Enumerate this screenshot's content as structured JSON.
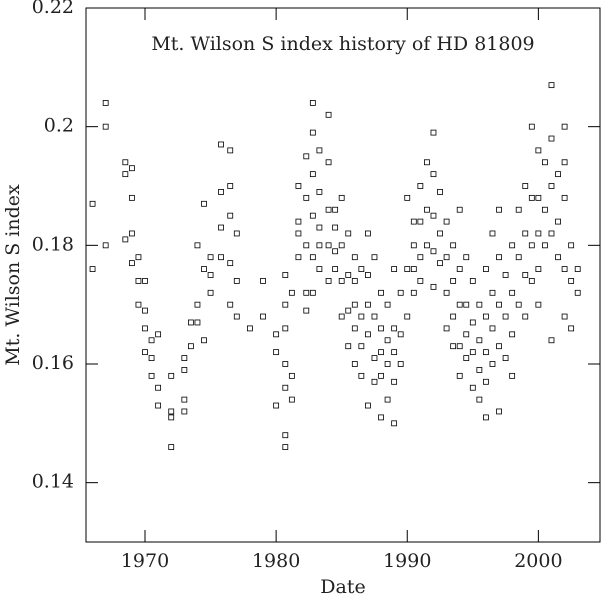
{
  "chart_data": {
    "type": "scatter",
    "title": "Mt. Wilson S index history of HD 81809",
    "x_label": "Date",
    "y_label": "Mt. Wilson S index",
    "color": "#000000",
    "xlim": [
      1965.5,
      2004.7
    ],
    "xticks": [
      1970,
      1980,
      1990,
      2000
    ],
    "ylim": [
      0.13,
      0.22
    ],
    "yticks": [
      0.14,
      0.16,
      0.18,
      0.2,
      0.22
    ],
    "x": [
      1966,
      1966,
      1967,
      1967,
      1967,
      1968.5,
      1968.5,
      1968.5,
      1969,
      1969,
      1969,
      1969,
      1969.5,
      1969.5,
      1969.5,
      1970,
      1970,
      1970,
      1970,
      1970.5,
      1970.5,
      1970.5,
      1971,
      1971,
      1971,
      1972,
      1972,
      1972,
      1972,
      1973,
      1973,
      1973,
      1973,
      1973.5,
      1973.5,
      1974,
      1974,
      1974,
      1974.5,
      1974.5,
      1974.5,
      1975,
      1975,
      1975,
      1975.8,
      1975.8,
      1975.8,
      1975.8,
      1976.5,
      1976.5,
      1976.5,
      1976.5,
      1976.5,
      1977,
      1977,
      1977,
      1978,
      1979,
      1979,
      1980,
      1980,
      1980,
      1980.7,
      1980.7,
      1980.7,
      1980.7,
      1980.7,
      1980.7,
      1980.7,
      1981.2,
      1981.2,
      1981.2,
      1981.7,
      1981.7,
      1981.7,
      1981.7,
      1982.3,
      1982.3,
      1982.3,
      1982.3,
      1982.3,
      1982.8,
      1982.8,
      1982.8,
      1982.8,
      1982.8,
      1982.8,
      1983.3,
      1983.3,
      1983.3,
      1983.3,
      1983.3,
      1984,
      1984,
      1984,
      1984,
      1984,
      1984.5,
      1984.5,
      1984.5,
      1984.5,
      1985,
      1985,
      1985,
      1985,
      1985.5,
      1985.5,
      1985.5,
      1985.5,
      1986,
      1986,
      1986,
      1986,
      1986,
      1986.5,
      1986.5,
      1986.5,
      1986.5,
      1987,
      1987,
      1987,
      1987,
      1987,
      1987.5,
      1987.5,
      1987.5,
      1987.5,
      1988,
      1988,
      1988,
      1988,
      1988,
      1988.5,
      1988.5,
      1988.5,
      1988.5,
      1989,
      1989,
      1989,
      1989,
      1989,
      1989.5,
      1989.5,
      1989.5,
      1990,
      1990,
      1990,
      1990.5,
      1990.5,
      1990.5,
      1990.5,
      1991,
      1991,
      1991,
      1991,
      1991.5,
      1991.5,
      1991.5,
      1992,
      1992,
      1992,
      1992,
      1992,
      1992.5,
      1992.5,
      1992.5,
      1993,
      1993,
      1993,
      1993,
      1993.5,
      1993.5,
      1993.5,
      1993.5,
      1994,
      1994,
      1994,
      1994,
      1994,
      1994.5,
      1994.5,
      1994.5,
      1994.5,
      1995,
      1995,
      1995,
      1995,
      1995.5,
      1995.5,
      1995.5,
      1995.5,
      1996,
      1996,
      1996,
      1996,
      1996,
      1996.5,
      1996.5,
      1996.5,
      1996.5,
      1997,
      1997,
      1997,
      1997,
      1997,
      1997.5,
      1997.5,
      1997.5,
      1998,
      1998,
      1998,
      1998,
      1998.5,
      1998.5,
      1998.5,
      1999,
      1999,
      1999,
      1999,
      1999.5,
      1999.5,
      1999.5,
      1999.5,
      2000,
      2000,
      2000,
      2000,
      2000,
      2000.5,
      2000.5,
      2000.5,
      2001,
      2001,
      2001,
      2001,
      2001,
      2001.5,
      2001.5,
      2001.5,
      2002,
      2002,
      2002,
      2002,
      2002,
      2002.5,
      2002.5,
      2002.5,
      2003,
      2003
    ],
    "values": [
      0.187,
      0.176,
      0.204,
      0.2,
      0.18,
      0.194,
      0.192,
      0.181,
      0.188,
      0.182,
      0.177,
      0.193,
      0.174,
      0.17,
      0.178,
      0.169,
      0.162,
      0.174,
      0.166,
      0.164,
      0.158,
      0.161,
      0.156,
      0.165,
      0.153,
      0.151,
      0.146,
      0.158,
      0.152,
      0.159,
      0.154,
      0.152,
      0.161,
      0.167,
      0.163,
      0.18,
      0.17,
      0.167,
      0.176,
      0.187,
      0.164,
      0.178,
      0.175,
      0.172,
      0.197,
      0.189,
      0.183,
      0.178,
      0.196,
      0.19,
      0.185,
      0.177,
      0.17,
      0.182,
      0.168,
      0.174,
      0.166,
      0.168,
      0.174,
      0.165,
      0.162,
      0.153,
      0.17,
      0.16,
      0.156,
      0.148,
      0.146,
      0.166,
      0.175,
      0.172,
      0.158,
      0.154,
      0.184,
      0.178,
      0.19,
      0.182,
      0.188,
      0.18,
      0.172,
      0.169,
      0.195,
      0.204,
      0.199,
      0.192,
      0.185,
      0.178,
      0.172,
      0.196,
      0.189,
      0.183,
      0.18,
      0.176,
      0.202,
      0.194,
      0.186,
      0.18,
      0.174,
      0.186,
      0.179,
      0.176,
      0.183,
      0.188,
      0.18,
      0.174,
      0.168,
      0.182,
      0.175,
      0.169,
      0.163,
      0.178,
      0.17,
      0.166,
      0.16,
      0.174,
      0.176,
      0.168,
      0.163,
      0.158,
      0.182,
      0.175,
      0.17,
      0.165,
      0.153,
      0.178,
      0.168,
      0.161,
      0.157,
      0.172,
      0.166,
      0.162,
      0.158,
      0.151,
      0.17,
      0.164,
      0.16,
      0.154,
      0.176,
      0.166,
      0.162,
      0.157,
      0.15,
      0.172,
      0.165,
      0.16,
      0.188,
      0.176,
      0.168,
      0.184,
      0.18,
      0.176,
      0.172,
      0.19,
      0.184,
      0.178,
      0.174,
      0.194,
      0.186,
      0.18,
      0.199,
      0.192,
      0.185,
      0.179,
      0.173,
      0.189,
      0.182,
      0.177,
      0.184,
      0.178,
      0.172,
      0.166,
      0.18,
      0.174,
      0.168,
      0.163,
      0.186,
      0.176,
      0.17,
      0.163,
      0.158,
      0.178,
      0.17,
      0.165,
      0.161,
      0.174,
      0.167,
      0.162,
      0.156,
      0.17,
      0.164,
      0.159,
      0.154,
      0.176,
      0.168,
      0.162,
      0.157,
      0.151,
      0.182,
      0.172,
      0.166,
      0.16,
      0.186,
      0.178,
      0.17,
      0.163,
      0.152,
      0.175,
      0.168,
      0.161,
      0.18,
      0.172,
      0.165,
      0.158,
      0.186,
      0.178,
      0.17,
      0.19,
      0.182,
      0.175,
      0.168,
      0.2,
      0.188,
      0.18,
      0.174,
      0.196,
      0.188,
      0.182,
      0.176,
      0.17,
      0.194,
      0.186,
      0.18,
      0.207,
      0.198,
      0.19,
      0.182,
      0.164,
      0.192,
      0.184,
      0.178,
      0.2,
      0.194,
      0.188,
      0.176,
      0.168,
      0.18,
      0.174,
      0.166,
      0.176,
      0.172
    ]
  }
}
